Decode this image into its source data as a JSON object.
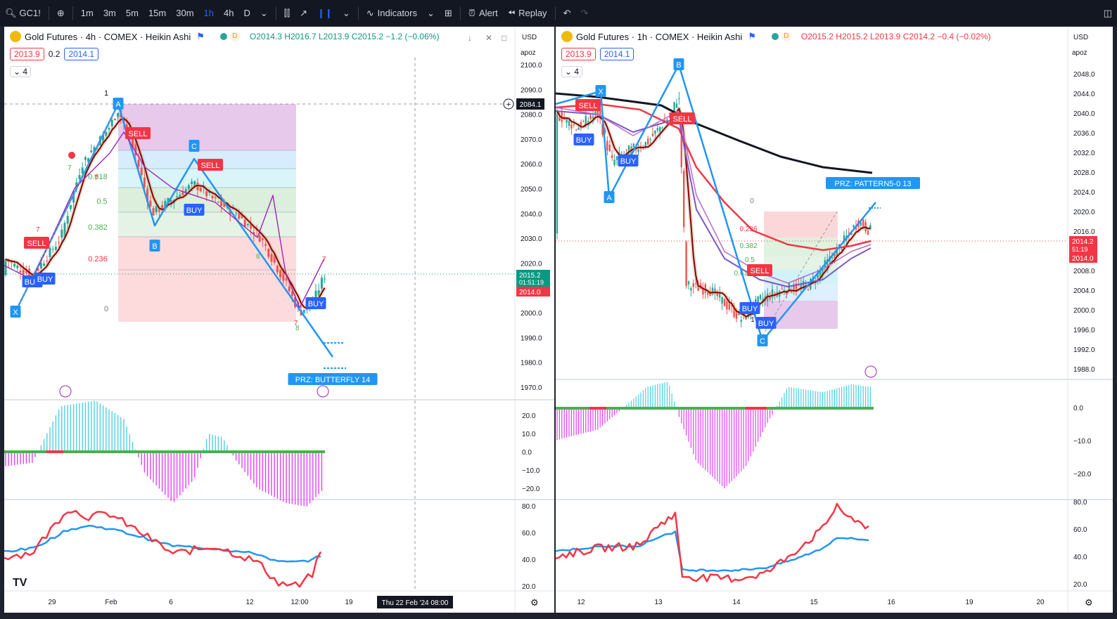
{
  "toolbar": {
    "symbol": "GC1!",
    "intervals": [
      "1m",
      "3m",
      "5m",
      "15m",
      "30m",
      "1h",
      "4h",
      "D"
    ],
    "active_interval": "1h",
    "indicators_label": "Indicators",
    "alert_label": "Alert",
    "replay_label": "Replay"
  },
  "left": {
    "title": "Gold Futures · 4h · COMEX · Heikin Ashi",
    "ohlc": "O2014.3 H2016.7 L2013.9 C2015.2 −1.2 (−0.06%)",
    "pill_red": "2013.9",
    "pill_mid": "0.2",
    "pill_blue": "2014.1",
    "layers": "4",
    "currency": "USD",
    "scale_mode": "apoz",
    "price_ticks": [
      "2100.0",
      "2090.0",
      "2080.0",
      "2070.0",
      "2060.0",
      "2050.0",
      "2040.0",
      "2030.0",
      "2020.0",
      "2010.0",
      "2000.0",
      "1990.0",
      "1980.0",
      "1970.0"
    ],
    "osc_ticks": [
      "20.0",
      "10.0",
      "0.0",
      "−10.0",
      "−20.0"
    ],
    "rsi_ticks": [
      "80.0",
      "60.0",
      "40.0",
      "20.0"
    ],
    "time_ticks": [
      "29",
      "Feb",
      "6",
      "12",
      "12:00",
      "19"
    ],
    "crosshair_time": "Thu 22 Feb '24   08:00",
    "crosshair_price": "2084.1",
    "last_price": "2015.2",
    "countdown": "01:51:19",
    "bid_price": "2014.0",
    "fib_levels": [
      "1",
      "0.618",
      "0.5",
      "0.382",
      "0.236",
      "0"
    ],
    "points": [
      "X",
      "A",
      "B",
      "C"
    ],
    "prz_label": "PRZ: BUTTERFLY 14",
    "signals": [
      "SELL",
      "SELL",
      "SELL",
      "BUY",
      "BUY",
      "BUY",
      "BUY"
    ],
    "counts": [
      "7",
      "7",
      "7",
      "8",
      "7",
      "8",
      "7"
    ]
  },
  "right": {
    "title": "Gold Futures · 1h · COMEX · Heikin Ashi",
    "ohlc": "O2015.2 H2015.2 L2013.9 C2014.2 −0.4 (−0.02%)",
    "pill_red": "2013.9",
    "pill_blue": "2014.1",
    "layers": "4",
    "currency": "USD",
    "scale_mode": "apoz",
    "price_ticks": [
      "2048.0",
      "2044.0",
      "2040.0",
      "2036.0",
      "2032.0",
      "2028.0",
      "2024.0",
      "2020.0",
      "2016.0",
      "2012.0",
      "2008.0",
      "2004.0",
      "2000.0",
      "1996.0",
      "1992.0",
      "1988.0"
    ],
    "osc_ticks": [
      "0.0",
      "−10.0",
      "−20.0"
    ],
    "rsi_ticks": [
      "80.0",
      "60.0",
      "40.0",
      "20.0"
    ],
    "time_ticks": [
      "12",
      "13",
      "14",
      "15",
      "16",
      "19",
      "20"
    ],
    "last_price": "2014.2",
    "countdown": "51:19",
    "bid_price": "2014.0",
    "fib_levels": [
      "0",
      "0.236",
      "0.382",
      "0.5",
      "0.618",
      "1"
    ],
    "points": [
      "X",
      "A",
      "B",
      "C"
    ],
    "prz_label": "PRZ: PATTERN5-0 13",
    "signals": [
      "SELL",
      "SELL",
      "SELL",
      "BUY",
      "BUY",
      "BUY",
      "BUY"
    ]
  },
  "colors": {
    "bull": "#26a69a",
    "bear": "#ef5350",
    "pattern": "#2196f3",
    "pattern_purple": "#9c27b0",
    "sell": "#f23645",
    "buy": "#2962ff"
  }
}
